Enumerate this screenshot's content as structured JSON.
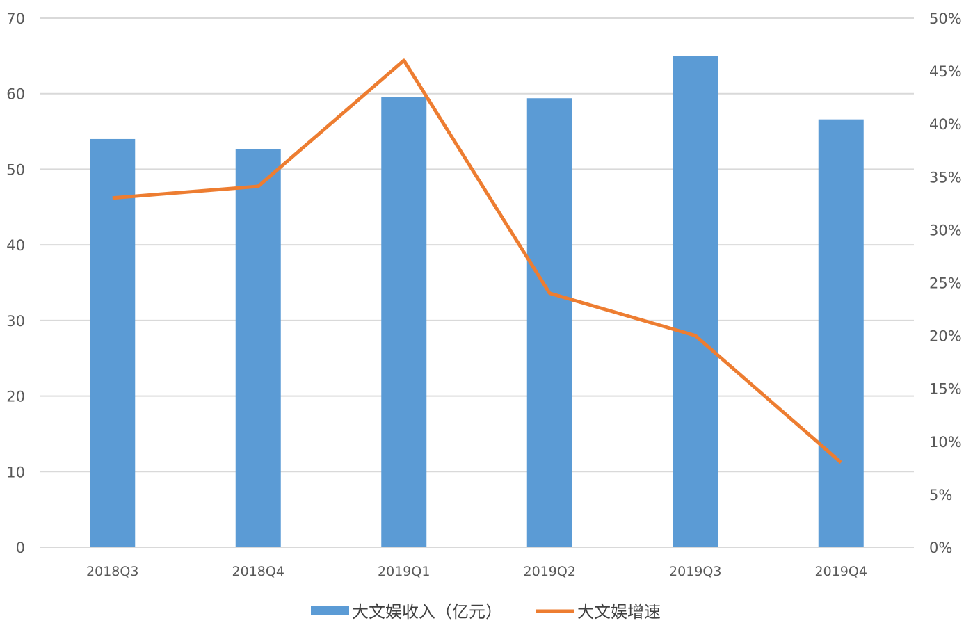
{
  "colors": {
    "bar": "#5b9bd5",
    "line": "#ed7d31",
    "grid": "#d9d9d9",
    "text": "#595959"
  },
  "chart_data": {
    "type": "bar",
    "title": "",
    "xlabel": "",
    "ylabel": "",
    "categories": [
      "2018Q3",
      "2018Q4",
      "2019Q1",
      "2019Q2",
      "2019Q3",
      "2019Q4"
    ],
    "ylim": [
      0,
      70
    ],
    "y_ticks": [
      "0",
      "10",
      "20",
      "30",
      "40",
      "50",
      "60",
      "70"
    ],
    "y2lim": [
      0,
      0.5
    ],
    "y2_ticks": [
      "0%",
      "5%",
      "10%",
      "15%",
      "20%",
      "25%",
      "30%",
      "35%",
      "40%",
      "45%",
      "50%"
    ],
    "grid": true,
    "legend_position": "bottom",
    "series": [
      {
        "name": "大文娱收入（亿元）",
        "type": "bar",
        "axis": "left",
        "values": [
          54,
          52.7,
          59.6,
          59.4,
          65,
          56.6
        ]
      },
      {
        "name": "大文娱增速",
        "type": "line",
        "axis": "right",
        "values": [
          0.33,
          0.341,
          0.46,
          0.24,
          0.2,
          0.08
        ]
      }
    ]
  }
}
